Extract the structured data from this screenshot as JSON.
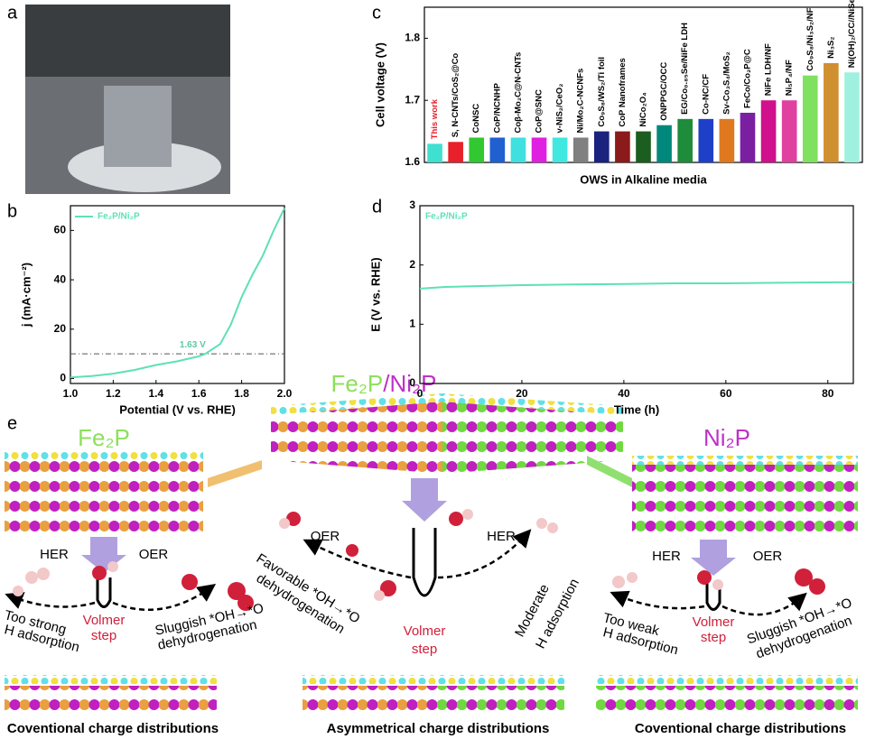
{
  "panel_labels": [
    "a",
    "b",
    "c",
    "d",
    "e"
  ],
  "chart_data": [
    {
      "type": "line",
      "xlabel": "Potential (V vs. RHE)",
      "ylabel": "j (mA·cm⁻²)",
      "xlim": [
        1.0,
        2.0
      ],
      "ylim": [
        -2,
        70
      ],
      "xticks": [
        {
          "value": 1.0,
          "label": "1.0"
        },
        1.2,
        1.4,
        1.6,
        1.8,
        {
          "value": 2.0,
          "label": "2.0"
        }
      ],
      "yticks": [
        0,
        20,
        40,
        60
      ],
      "x": [
        1.0,
        1.1,
        1.2,
        1.3,
        1.4,
        1.5,
        1.6,
        1.63,
        1.7,
        1.75,
        1.8,
        1.85,
        1.9,
        1.95,
        2.0
      ],
      "series": [
        {
          "name": "Fe₂P/Ni₂P",
          "color": "#5ee0b8",
          "values": [
            0.5,
            1,
            2,
            3.5,
            5.5,
            7,
            9,
            10,
            14,
            22,
            33,
            42,
            50,
            60,
            69
          ]
        }
      ],
      "reference_y": 10,
      "reference_label": "1.63 V"
    },
    {
      "type": "bar",
      "ylabel": "Cell voltage (V)",
      "xlabel": "OWS in Alkaline media",
      "ylim": [
        1.6,
        1.85
      ],
      "yticks": [
        1.6,
        1.7,
        1.8
      ],
      "categories": [
        "This work",
        "S, N-CNTs/CoS₂@Co",
        "CoNSC",
        "CoP/NCNHP",
        "Coβ-Mo₂C@N-CNTs",
        "CoP@SNC",
        "v-NiS₂/CeO₂",
        "Ni/Mo₂C-NCNFs",
        "Co₉S₈/WS₂/Ti foil",
        "CoP Nanoframes",
        "NiCo₂O₄",
        "ONPPGC/OCC",
        "EG/Co₀.₈₅Se/NiFe LDH",
        "Co-NC/CF",
        "Sv-Co₃S₄/MoS₂",
        "FeCo/Co₂P@C",
        "NiFe LDH/NF",
        "Ni₅P₄/NF",
        "Co₉S₈/Ni₃S₂/NF",
        "Ni₃S₂",
        "Ni(OH)₂/CC//NiSe₂/CC"
      ],
      "values": [
        1.63,
        1.633,
        1.64,
        1.64,
        1.64,
        1.64,
        1.64,
        1.64,
        1.65,
        1.65,
        1.65,
        1.66,
        1.67,
        1.67,
        1.67,
        1.68,
        1.7,
        1.7,
        1.74,
        1.76,
        1.745
      ],
      "colors": [
        "#40e0d0",
        "#e8202a",
        "#32c832",
        "#2060d0",
        "#40e0e0",
        "#e020e0",
        "#40e8e0",
        "#808080",
        "#1a237e",
        "#8b1a1a",
        "#1b5e20",
        "#00897b",
        "#1e8c3a",
        "#1e40c8",
        "#e07820",
        "#7b1fa2",
        "#d0108c",
        "#e040a0",
        "#80e060",
        "#d09030",
        "#a0f0e0"
      ]
    },
    {
      "type": "line",
      "xlabel": "Time (h)",
      "ylabel": "E (V vs. RHE)",
      "xlim": [
        0,
        85
      ],
      "ylim": [
        0,
        3
      ],
      "xticks": [
        0,
        20,
        40,
        60,
        80
      ],
      "yticks": [
        0,
        1,
        2,
        3
      ],
      "x": [
        0,
        5,
        10,
        20,
        30,
        40,
        50,
        60,
        70,
        85
      ],
      "series": [
        {
          "name": "Fe₂P/Ni₂P",
          "color": "#5ee0b8",
          "values": [
            1.6,
            1.63,
            1.64,
            1.66,
            1.67,
            1.68,
            1.69,
            1.69,
            1.7,
            1.71
          ]
        }
      ]
    }
  ],
  "scheme": {
    "titles": [
      "Fe₂P",
      "Fe₂P",
      "/Ni₂P",
      "Ni₂P"
    ],
    "left": {
      "her": "HER",
      "oer": "OER",
      "h": [
        "Too strong",
        "H adsorption"
      ],
      "volmer": [
        "Volmer",
        "step"
      ],
      "o": [
        "Sluggish *OH→*O",
        "dehydrogenation"
      ],
      "caption": "Coventional charge distributions"
    },
    "middle": {
      "oer": "OER",
      "her": "HER",
      "o": [
        "Favorable *OH→*O",
        "dehydrogenation"
      ],
      "h": [
        "Moderate",
        "H adsorption"
      ],
      "volmer": [
        "Volmer",
        "step"
      ],
      "caption": "Asymmetrical charge distributions"
    },
    "right": {
      "her": "HER",
      "oer": "OER",
      "h": [
        "Too weak",
        "H adsorption"
      ],
      "volmer": [
        "Volmer",
        "step"
      ],
      "o": [
        "Sluggish *OH→*O",
        "dehydrogenation"
      ],
      "caption": "Coventional charge distributions"
    }
  }
}
